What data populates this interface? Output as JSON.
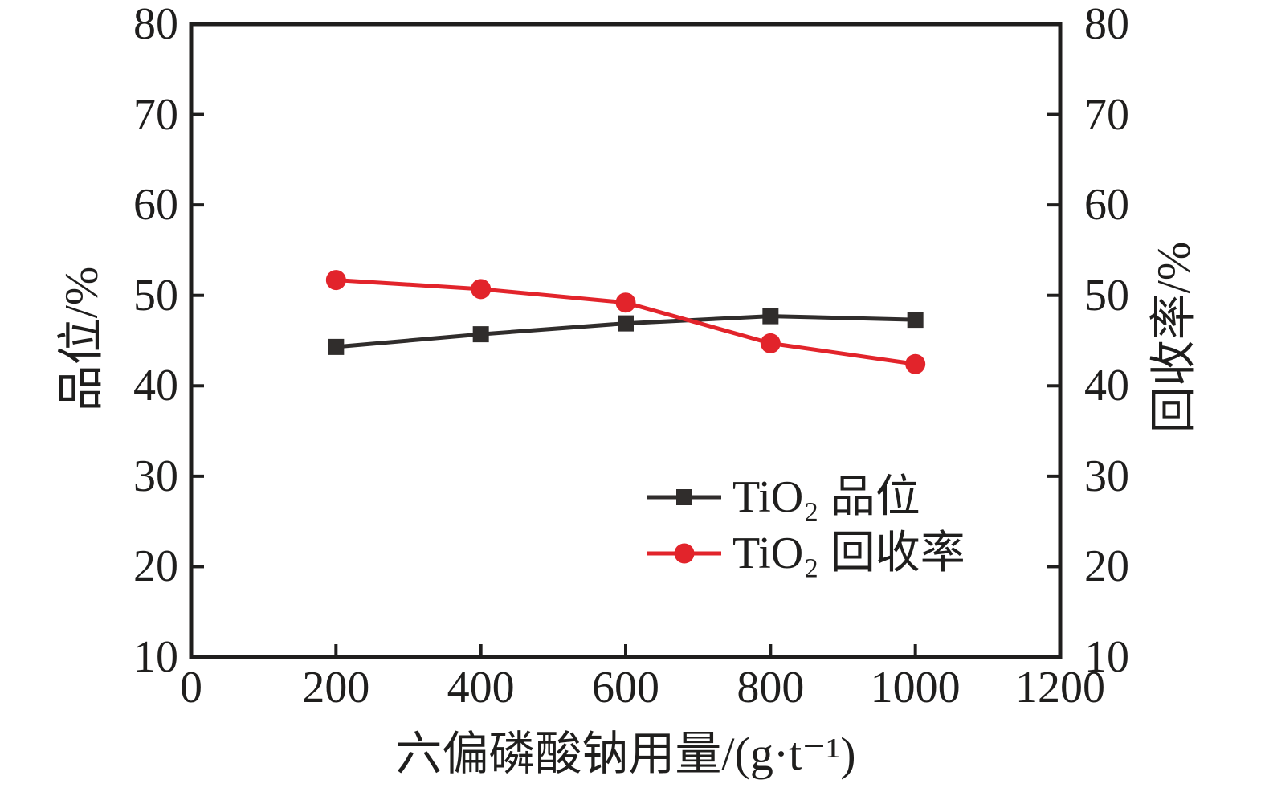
{
  "chart_data": {
    "type": "line",
    "xlabel": "六偏磷酸钠用量/(g·t⁻¹)",
    "ylabel_left": "品位/%",
    "ylabel_right": "回收率/%",
    "xlim": [
      0,
      1200
    ],
    "ylim_left": [
      10,
      80
    ],
    "ylim_right": [
      10,
      80
    ],
    "xticks": [
      0,
      200,
      400,
      600,
      800,
      1000,
      1200
    ],
    "yticks_left": [
      10,
      20,
      30,
      40,
      50,
      60,
      70,
      80
    ],
    "yticks_right": [
      10,
      20,
      30,
      40,
      50,
      60,
      70,
      80
    ],
    "grid": false,
    "legend_position": "inside-lower-right",
    "x": [
      200,
      400,
      600,
      800,
      1000
    ],
    "series": [
      {
        "name": "TiO₂ 品位",
        "axis": "left",
        "marker": "square",
        "color": "#302d2c",
        "values": [
          44.3,
          45.7,
          46.9,
          47.7,
          47.3
        ]
      },
      {
        "name": "TiO₂ 回收率",
        "axis": "right",
        "marker": "circle",
        "color": "#e2242b",
        "values": [
          51.7,
          50.7,
          49.2,
          44.7,
          42.4
        ]
      }
    ]
  },
  "colors": {
    "axis": "#1f1e1d",
    "text": "#1f1e1d",
    "background": "#ffffff"
  }
}
